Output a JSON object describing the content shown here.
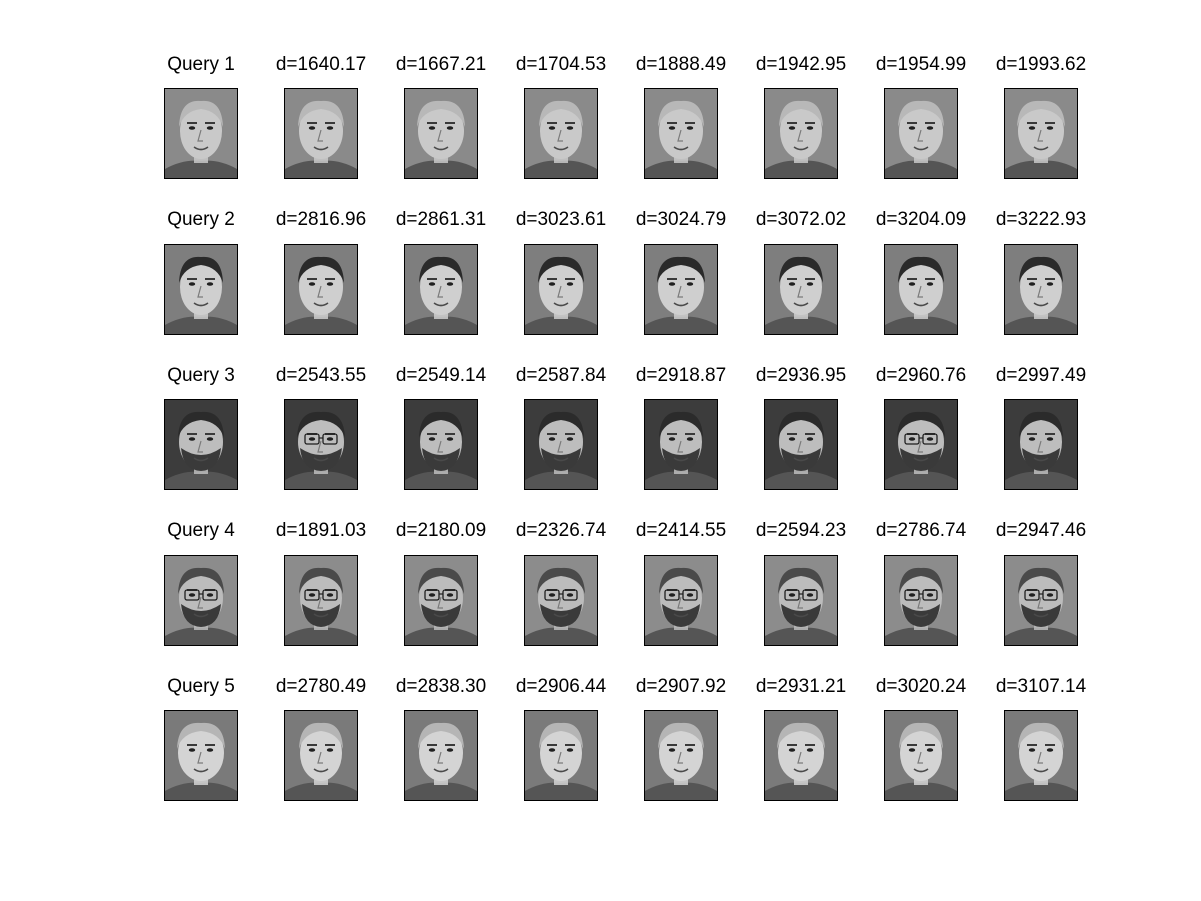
{
  "rows": [
    {
      "query_label": "Query 1",
      "matches": [
        "d=1640.17",
        "d=1667.21",
        "d=1704.53",
        "d=1888.49",
        "d=1942.95",
        "d=1954.99",
        "d=1993.62"
      ]
    },
    {
      "query_label": "Query 2",
      "matches": [
        "d=2816.96",
        "d=2861.31",
        "d=3023.61",
        "d=3024.79",
        "d=3072.02",
        "d=3204.09",
        "d=3222.93"
      ]
    },
    {
      "query_label": "Query 3",
      "matches": [
        "d=2543.55",
        "d=2549.14",
        "d=2587.84",
        "d=2918.87",
        "d=2936.95",
        "d=2960.76",
        "d=2997.49"
      ]
    },
    {
      "query_label": "Query 4",
      "matches": [
        "d=1891.03",
        "d=2180.09",
        "d=2326.74",
        "d=2414.55",
        "d=2594.23",
        "d=2786.74",
        "d=2947.46"
      ]
    },
    {
      "query_label": "Query 5",
      "matches": [
        "d=2780.49",
        "d=2838.30",
        "d=2906.44",
        "d=2907.92",
        "d=2931.21",
        "d=3020.24",
        "d=3107.14"
      ]
    }
  ],
  "colors": {
    "label_text": "#000000",
    "image_border": "#000000",
    "background": "#ffffff"
  }
}
